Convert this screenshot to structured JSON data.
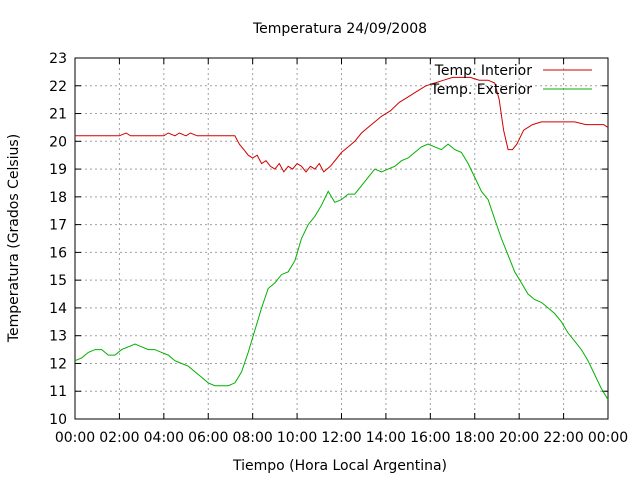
{
  "chart_data": {
    "type": "line",
    "title": "Temperatura 24/09/2008",
    "xlabel": "Tiempo (Hora Local Argentina)",
    "ylabel": "Temperatura (Grados Celsius)",
    "xlim": [
      0,
      24
    ],
    "ylim": [
      10,
      23
    ],
    "x_ticks": [
      "00:00",
      "02:00",
      "04:00",
      "06:00",
      "08:00",
      "10:00",
      "12:00",
      "14:00",
      "16:00",
      "18:00",
      "20:00",
      "22:00",
      "00:00"
    ],
    "y_ticks": [
      10,
      11,
      12,
      13,
      14,
      15,
      16,
      17,
      18,
      19,
      20,
      21,
      22,
      23
    ],
    "grid": true,
    "legend_position": "top-right",
    "series": [
      {
        "name": "Temp. Interior",
        "color": "#d00000",
        "x": [
          0,
          0.5,
          1,
          1.5,
          2,
          2.3,
          2.5,
          3,
          3.5,
          4,
          4.2,
          4.5,
          4.7,
          5,
          5.2,
          5.5,
          6,
          6.5,
          7,
          7.2,
          7.4,
          7.6,
          7.8,
          8,
          8.2,
          8.4,
          8.6,
          8.8,
          9,
          9.2,
          9.4,
          9.6,
          9.8,
          10,
          10.2,
          10.4,
          10.6,
          10.8,
          11,
          11.2,
          11.5,
          11.8,
          12,
          12.3,
          12.6,
          12.9,
          13.2,
          13.5,
          13.8,
          14.2,
          14.6,
          15,
          15.4,
          15.8,
          16.2,
          16.6,
          17,
          17.4,
          17.8,
          18.2,
          18.6,
          18.9,
          19.1,
          19.3,
          19.5,
          19.7,
          19.9,
          20.2,
          20.6,
          21,
          21.5,
          22,
          22.5,
          23,
          23.5,
          23.8,
          24
        ],
        "y": [
          20.2,
          20.2,
          20.2,
          20.2,
          20.2,
          20.3,
          20.2,
          20.2,
          20.2,
          20.2,
          20.3,
          20.2,
          20.3,
          20.2,
          20.3,
          20.2,
          20.2,
          20.2,
          20.2,
          20.2,
          19.9,
          19.7,
          19.5,
          19.4,
          19.5,
          19.2,
          19.3,
          19.1,
          19.0,
          19.2,
          18.9,
          19.1,
          19.0,
          19.2,
          19.1,
          18.9,
          19.1,
          19.0,
          19.2,
          18.9,
          19.1,
          19.4,
          19.6,
          19.8,
          20.0,
          20.3,
          20.5,
          20.7,
          20.9,
          21.1,
          21.4,
          21.6,
          21.8,
          22.0,
          22.1,
          22.2,
          22.3,
          22.3,
          22.3,
          22.2,
          22.2,
          22.1,
          21.5,
          20.4,
          19.7,
          19.7,
          19.9,
          20.4,
          20.6,
          20.7,
          20.7,
          20.7,
          20.7,
          20.6,
          20.6,
          20.6,
          20.5
        ]
      },
      {
        "name": "Temp. Exterior",
        "color": "#00b000",
        "x": [
          0,
          0.3,
          0.6,
          0.9,
          1.2,
          1.5,
          1.8,
          2.1,
          2.4,
          2.7,
          3,
          3.3,
          3.6,
          3.9,
          4.2,
          4.5,
          4.8,
          5.1,
          5.4,
          5.7,
          6,
          6.3,
          6.6,
          6.9,
          7.2,
          7.5,
          7.8,
          8.1,
          8.4,
          8.7,
          9,
          9.3,
          9.6,
          9.9,
          10.2,
          10.5,
          10.8,
          11.1,
          11.4,
          11.7,
          12,
          12.3,
          12.6,
          12.9,
          13.2,
          13.5,
          13.8,
          14.1,
          14.4,
          14.7,
          15,
          15.3,
          15.6,
          15.9,
          16.2,
          16.5,
          16.8,
          17.1,
          17.4,
          17.7,
          18,
          18.3,
          18.6,
          18.9,
          19.2,
          19.5,
          19.8,
          20.1,
          20.4,
          20.7,
          21,
          21.3,
          21.6,
          21.9,
          22.2,
          22.5,
          22.8,
          23.1,
          23.4,
          23.7,
          24
        ],
        "y": [
          12.1,
          12.2,
          12.4,
          12.5,
          12.5,
          12.3,
          12.3,
          12.5,
          12.6,
          12.7,
          12.6,
          12.5,
          12.5,
          12.4,
          12.3,
          12.1,
          12.0,
          11.9,
          11.7,
          11.5,
          11.3,
          11.2,
          11.2,
          11.2,
          11.3,
          11.7,
          12.4,
          13.2,
          14.0,
          14.7,
          14.9,
          15.2,
          15.3,
          15.7,
          16.5,
          17.0,
          17.3,
          17.7,
          18.2,
          17.8,
          17.9,
          18.1,
          18.1,
          18.4,
          18.7,
          19.0,
          18.9,
          19.0,
          19.1,
          19.3,
          19.4,
          19.6,
          19.8,
          19.9,
          19.8,
          19.7,
          19.9,
          19.7,
          19.6,
          19.2,
          18.7,
          18.2,
          17.9,
          17.2,
          16.5,
          15.9,
          15.3,
          14.9,
          14.5,
          14.3,
          14.2,
          14.0,
          13.8,
          13.5,
          13.1,
          12.8,
          12.5,
          12.1,
          11.6,
          11.1,
          10.7
        ]
      }
    ]
  }
}
